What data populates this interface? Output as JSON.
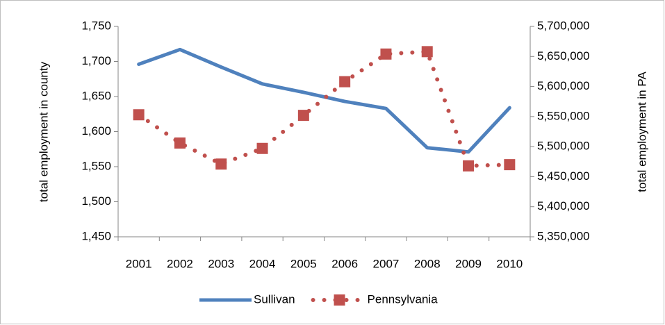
{
  "chart_data": {
    "type": "line",
    "categories": [
      "2001",
      "2002",
      "2003",
      "2004",
      "2005",
      "2006",
      "2007",
      "2008",
      "2009",
      "2010"
    ],
    "y_label": "total employment in county",
    "y2_label": "total employment in PA",
    "ylim": [
      1450,
      1750
    ],
    "yticks": [
      {
        "value": 1450,
        "label": "1,450"
      },
      {
        "value": 1500,
        "label": "1,500"
      },
      {
        "value": 1550,
        "label": "1,550"
      },
      {
        "value": 1600,
        "label": "1,600"
      },
      {
        "value": 1650,
        "label": "1,650"
      },
      {
        "value": 1700,
        "label": "1,700"
      },
      {
        "value": 1750,
        "label": "1,750"
      }
    ],
    "y2lim": [
      5350000,
      5700000
    ],
    "y2ticks": [
      {
        "value": 5350000,
        "label": "5,350,000"
      },
      {
        "value": 5400000,
        "label": "5,400,000"
      },
      {
        "value": 5450000,
        "label": "5,450,000"
      },
      {
        "value": 5500000,
        "label": "5,500,000"
      },
      {
        "value": 5550000,
        "label": "5,550,000"
      },
      {
        "value": 5600000,
        "label": "5,600,000"
      },
      {
        "value": 5650000,
        "label": "5,650,000"
      },
      {
        "value": 5700000,
        "label": "5,700,000"
      }
    ],
    "legend": "bottom",
    "series": [
      {
        "name": "Sullivan",
        "color": "#4f81bd",
        "style": "solid",
        "values": [
          1696,
          1717,
          1692,
          1668,
          1656,
          1643,
          1633,
          1577,
          1571,
          1634
        ]
      },
      {
        "name": "Pennsylvania",
        "color": "#c0504d",
        "style": "dotted",
        "marker": "square",
        "axis": "y2",
        "values": [
          5553000,
          5506000,
          5471000,
          5497000,
          5552000,
          5608000,
          5654000,
          5658000,
          5468000,
          5470000
        ]
      }
    ]
  }
}
